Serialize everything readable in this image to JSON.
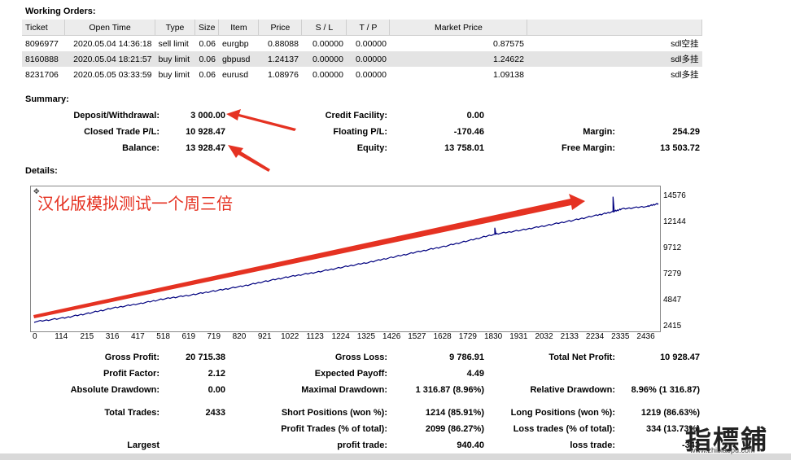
{
  "working_orders": {
    "title": "Working Orders:",
    "headers": [
      "Ticket",
      "Open Time",
      "Type",
      "Size",
      "Item",
      "Price",
      "S / L",
      "T / P",
      "Market Price",
      ""
    ],
    "rows": [
      {
        "ticket": "8096977",
        "open_time": "2020.05.04 14:36:18",
        "type": "sell limit",
        "size": "0.06",
        "item": "eurgbp",
        "price": "0.88088",
        "sl": "0.00000",
        "tp": "0.00000",
        "market": "0.87575",
        "comment": "sdl空挂"
      },
      {
        "ticket": "8160888",
        "open_time": "2020.05.04 18:21:57",
        "type": "buy limit",
        "size": "0.06",
        "item": "gbpusd",
        "price": "1.24137",
        "sl": "0.00000",
        "tp": "0.00000",
        "market": "1.24622",
        "comment": "sdl多挂"
      },
      {
        "ticket": "8231706",
        "open_time": "2020.05.05 03:33:59",
        "type": "buy limit",
        "size": "0.06",
        "item": "eurusd",
        "price": "1.08976",
        "sl": "0.00000",
        "tp": "0.00000",
        "market": "1.09138",
        "comment": "sdl多挂"
      }
    ]
  },
  "summary": {
    "title": "Summary:",
    "deposit_label": "Deposit/Withdrawal:",
    "deposit": "3 000.00",
    "credit_label": "Credit Facility:",
    "credit": "0.00",
    "closed_label": "Closed Trade P/L:",
    "closed": "10 928.47",
    "floating_label": "Floating P/L:",
    "floating": "-170.46",
    "margin_label": "Margin:",
    "margin": "254.29",
    "balance_label": "Balance:",
    "balance": "13 928.47",
    "equity_label": "Equity:",
    "equity": "13 758.01",
    "free_margin_label": "Free Margin:",
    "free_margin": "13 503.72"
  },
  "details": {
    "title": "Details:",
    "annotation": "汉化版模拟测试一个周三倍",
    "stats": {
      "gross_profit_label": "Gross Profit:",
      "gross_profit": "20 715.38",
      "gross_loss_label": "Gross Loss:",
      "gross_loss": "9 786.91",
      "net_profit_label": "Total Net Profit:",
      "net_profit": "10 928.47",
      "profit_factor_label": "Profit Factor:",
      "profit_factor": "2.12",
      "expected_payoff_label": "Expected Payoff:",
      "expected_payoff": "4.49",
      "abs_dd_label": "Absolute Drawdown:",
      "abs_dd": "0.00",
      "max_dd_label": "Maximal Drawdown:",
      "max_dd": "1 316.87 (8.96%)",
      "rel_dd_label": "Relative Drawdown:",
      "rel_dd": "8.96% (1 316.87)",
      "total_trades_label": "Total Trades:",
      "total_trades": "2433",
      "short_label": "Short Positions (won %):",
      "short": "1214 (85.91%)",
      "long_label": "Long Positions (won %):",
      "long": "1219 (86.63%)",
      "profit_trades_label": "Profit Trades (% of total):",
      "profit_trades": "2099 (86.27%)",
      "loss_trades_label": "Loss trades (% of total):",
      "loss_trades": "334 (13.73%)",
      "largest_label": "Largest",
      "profit_trade_label": "profit trade:",
      "largest_profit": "940.40",
      "loss_trade_label": "loss trade:",
      "largest_loss": "-343"
    }
  },
  "watermark": {
    "text": "指標鋪",
    "url": "www.zhibiaopu.com"
  },
  "chart_data": {
    "type": "line",
    "title": "",
    "xlabel": "",
    "ylabel": "",
    "x_ticks": [
      "0",
      "114",
      "215",
      "316",
      "417",
      "518",
      "619",
      "719",
      "820",
      "921",
      "1022",
      "1123",
      "1224",
      "1325",
      "1426",
      "1527",
      "1628",
      "1729",
      "1830",
      "1931",
      "2032",
      "2133",
      "2234",
      "2335",
      "2436"
    ],
    "y_ticks": [
      "14576",
      "12144",
      "9712",
      "7279",
      "4847",
      "2415"
    ],
    "xlim": [
      0,
      2480
    ],
    "ylim": [
      2415,
      15200
    ],
    "series": [
      {
        "color": "#00007f",
        "x": [
          0,
          114,
          215,
          316,
          417,
          518,
          619,
          719,
          820,
          921,
          1022,
          1123,
          1224,
          1325,
          1426,
          1527,
          1628,
          1729,
          1830,
          1931,
          2032,
          2133,
          2234,
          2300,
          2335,
          2436,
          2480
        ],
        "y": [
          3000,
          3350,
          3800,
          4300,
          4700,
          5150,
          5500,
          5900,
          6300,
          6800,
          7250,
          7650,
          8100,
          8550,
          9050,
          9550,
          10050,
          10600,
          11200,
          11550,
          12000,
          12450,
          12950,
          13300,
          13550,
          13800,
          14050
        ]
      }
    ],
    "spikes": [
      {
        "x": 1830,
        "y": 11800
      },
      {
        "x": 2300,
        "y": 14700
      }
    ]
  }
}
